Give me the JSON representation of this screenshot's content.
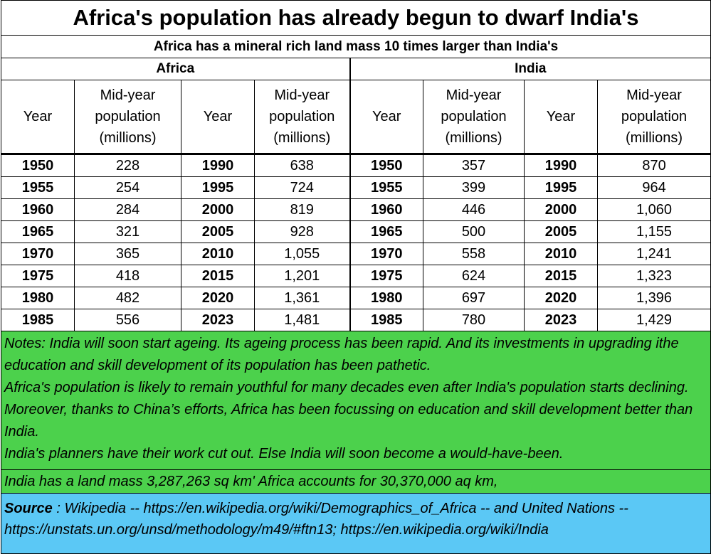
{
  "title": "Africa's population has already begun to dwarf India's",
  "subtitle": "Africa has a mineral rich land mass 10 times larger than India's",
  "regions": {
    "africa": "Africa",
    "india": "India"
  },
  "headers": {
    "year": "Year",
    "population": [
      "Mid-year",
      "population",
      "(millions)"
    ]
  },
  "africa_rows": [
    [
      "1950",
      "228",
      "1990",
      "638"
    ],
    [
      "1955",
      "254",
      "1995",
      "724"
    ],
    [
      "1960",
      "284",
      "2000",
      "819"
    ],
    [
      "1965",
      "321",
      "2005",
      "928"
    ],
    [
      "1970",
      "365",
      "2010",
      "1,055"
    ],
    [
      "1975",
      "418",
      "2015",
      "1,201"
    ],
    [
      "1980",
      "482",
      "2020",
      "1,361"
    ],
    [
      "1985",
      "556",
      "2023",
      "1,481"
    ]
  ],
  "india_rows": [
    [
      "1950",
      "357",
      "1990",
      "870"
    ],
    [
      "1955",
      "399",
      "1995",
      "964"
    ],
    [
      "1960",
      "446",
      "2000",
      "1,060"
    ],
    [
      "1965",
      "500",
      "2005",
      "1,155"
    ],
    [
      "1970",
      "558",
      "2010",
      "1,241"
    ],
    [
      "1975",
      "624",
      "2015",
      "1,323"
    ],
    [
      "1980",
      "697",
      "2020",
      "1,396"
    ],
    [
      "1985",
      "780",
      "2023",
      "1,429"
    ]
  ],
  "notes": [
    "Notes:  India will soon start ageing.  Its ageing process has been rapid.  And its investments in upgrading ithe education and skill development of its population has been pathetic.",
    "Africa's population is likely to remain youthful for many decades even after India's population starts declining.  Moreover, thanks to China’s efforts, Africa has been focussing on education and skill development better than India.",
    "India's planners have their work cut out.  Else India will soon become a would-have-been."
  ],
  "land_mass": "India has a land mass 3,287,263 sq km' Africa accounts for 30,370,000  aq km,",
  "source": {
    "label": "Source",
    "text": " : Wikipedia --  https://en.wikipedia.org/wiki/Demographics_of_Africa -- and United Nations -- https://unstats.un.org/unsd/methodology/m49/#ftn13; https://en.wikipedia.org/wiki/India"
  },
  "colors": {
    "notes_bg": "#4cd14c",
    "source_bg": "#5bc8f5"
  }
}
